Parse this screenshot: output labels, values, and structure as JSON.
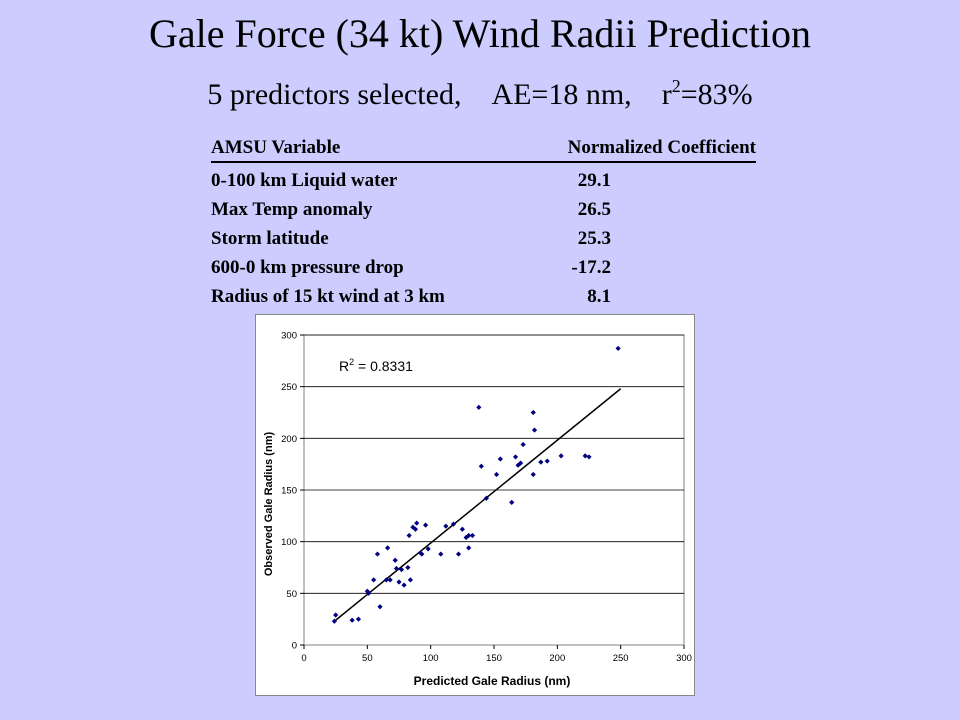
{
  "title": "Gale Force (34 kt) Wind Radii Prediction",
  "subtitle": {
    "predictors": "5 predictors selected,",
    "ae": "AE=18 nm,",
    "r2_prefix": "r",
    "r2_sup": "2",
    "r2_suffix": "=83%"
  },
  "table": {
    "header": {
      "variable": "AMSU Variable",
      "coefficient": "Normalized Coefficient"
    },
    "rows": [
      {
        "variable": "0-100 km Liquid water",
        "coefficient": "29.1"
      },
      {
        "variable": "Max Temp anomaly",
        "coefficient": "26.5"
      },
      {
        "variable": "Storm latitude",
        "coefficient": "25.3"
      },
      {
        "variable": "600-0 km pressure drop",
        "coefficient": "-17.2"
      },
      {
        "variable": "Radius of 15 kt wind at 3 km",
        "coefficient": "8.1"
      }
    ]
  },
  "chart_data": {
    "type": "scatter",
    "xlabel": "Predicted Gale Radius (nm)",
    "ylabel": "Observed Gale Radius (nm)",
    "xlim": [
      0,
      300
    ],
    "ylim": [
      0,
      300
    ],
    "xticks": [
      0,
      50,
      100,
      150,
      200,
      250,
      300
    ],
    "yticks": [
      0,
      50,
      100,
      150,
      200,
      250,
      300
    ],
    "grid": "horizontal",
    "annotation": {
      "prefix": "R",
      "sup": "2",
      "text": " = 0.8331"
    },
    "trendline": {
      "x": [
        24,
        250
      ],
      "y": [
        23,
        248
      ]
    },
    "marker_color": "#000080",
    "points": [
      [
        24,
        23
      ],
      [
        25,
        29
      ],
      [
        38,
        24
      ],
      [
        43,
        25
      ],
      [
        50,
        52
      ],
      [
        51,
        50
      ],
      [
        55,
        63
      ],
      [
        60,
        37
      ],
      [
        58,
        88
      ],
      [
        65,
        63
      ],
      [
        66,
        94
      ],
      [
        68,
        63
      ],
      [
        72,
        82
      ],
      [
        73,
        74
      ],
      [
        75,
        61
      ],
      [
        77,
        73
      ],
      [
        79,
        58
      ],
      [
        82,
        75
      ],
      [
        84,
        63
      ],
      [
        83,
        106
      ],
      [
        86,
        114
      ],
      [
        88,
        112
      ],
      [
        89,
        118
      ],
      [
        92,
        89
      ],
      [
        93,
        88
      ],
      [
        96,
        116
      ],
      [
        98,
        93
      ],
      [
        108,
        88
      ],
      [
        112,
        115
      ],
      [
        118,
        117
      ],
      [
        122,
        88
      ],
      [
        125,
        112
      ],
      [
        128,
        104
      ],
      [
        130,
        106
      ],
      [
        130,
        94
      ],
      [
        133,
        106
      ],
      [
        138,
        230
      ],
      [
        140,
        173
      ],
      [
        144,
        142
      ],
      [
        152,
        165
      ],
      [
        155,
        180
      ],
      [
        164,
        138
      ],
      [
        167,
        182
      ],
      [
        169,
        174
      ],
      [
        171,
        176
      ],
      [
        173,
        194
      ],
      [
        181,
        225
      ],
      [
        182,
        208
      ],
      [
        181,
        165
      ],
      [
        187,
        177
      ],
      [
        192,
        178
      ],
      [
        203,
        183
      ],
      [
        222,
        183
      ],
      [
        225,
        182
      ],
      [
        248,
        287
      ]
    ]
  }
}
